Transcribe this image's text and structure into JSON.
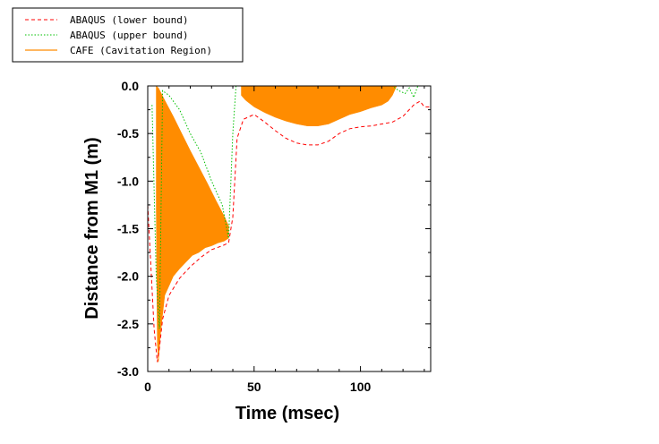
{
  "chart_data": {
    "type": "line",
    "title": "",
    "xlabel": "Time (msec)",
    "ylabel": "Distance from M1 (m)",
    "xlim": [
      0,
      133
    ],
    "ylim": [
      -3.0,
      0.0
    ],
    "xticks": [
      0,
      50,
      100
    ],
    "xtick_labels": [
      "0",
      "50",
      "100"
    ],
    "yticks": [
      0.0,
      -0.5,
      -1.0,
      -1.5,
      -2.0,
      -2.5,
      -3.0
    ],
    "ytick_labels": [
      "0.0",
      "-0.5",
      "-1.0",
      "-1.5",
      "-2.0",
      "-2.5",
      "-3.0"
    ],
    "grid": false,
    "legend_position": "top-left",
    "series": [
      {
        "name": "ABAQUS (lower bound)",
        "style": "dashed",
        "color": "#ff0000",
        "x": [
          0,
          3,
          4.5,
          5.5,
          7,
          10,
          15,
          20,
          25,
          30,
          35,
          38,
          40,
          42,
          45,
          50,
          55,
          60,
          65,
          70,
          75,
          80,
          85,
          90,
          95,
          100,
          105,
          110,
          115,
          120,
          125,
          128,
          130,
          133
        ],
        "y": [
          -1.25,
          -2.55,
          -2.9,
          -2.75,
          -2.45,
          -2.2,
          -2.02,
          -1.9,
          -1.8,
          -1.72,
          -1.68,
          -1.65,
          -1.38,
          -0.55,
          -0.35,
          -0.3,
          -0.38,
          -0.47,
          -0.55,
          -0.6,
          -0.62,
          -0.62,
          -0.58,
          -0.5,
          -0.45,
          -0.43,
          -0.42,
          -0.4,
          -0.38,
          -0.32,
          -0.2,
          -0.16,
          -0.22,
          -0.22
        ]
      },
      {
        "name": "ABAQUS (upper bound)",
        "style": "dotted",
        "color": "#00c000",
        "x": [
          2,
          4,
          5.5,
          7,
          10,
          15,
          20,
          25,
          30,
          35,
          38,
          40,
          41.5,
          43,
          100,
          115,
          118,
          121,
          123,
          125,
          127,
          133
        ],
        "y": [
          -0.2,
          -2.0,
          -2.55,
          -0.05,
          -0.1,
          -0.25,
          -0.5,
          -0.7,
          -1.0,
          -1.25,
          -1.6,
          -0.5,
          0.0,
          0.0,
          0.0,
          0.0,
          -0.05,
          -0.08,
          -0.02,
          -0.12,
          0.0,
          0.0
        ]
      },
      {
        "name": "CAFE (Cavitation Region)",
        "style": "filled",
        "color": "#ff8c00",
        "upper_x": [
          4,
          5,
          8,
          12,
          16,
          20,
          24,
          28,
          32,
          36,
          38
        ],
        "upper_y": [
          0.0,
          -0.02,
          -0.15,
          -0.32,
          -0.5,
          -0.68,
          -0.85,
          -1.02,
          -1.2,
          -1.37,
          -1.47
        ],
        "lower_x": [
          4,
          4.5,
          5,
          6,
          7,
          8,
          10,
          12,
          15,
          18,
          21,
          24,
          27,
          30,
          33,
          36,
          38
        ],
        "lower_y": [
          -1.3,
          -2.7,
          -2.9,
          -2.6,
          -2.4,
          -2.2,
          -2.1,
          -2.0,
          -1.92,
          -1.85,
          -1.78,
          -1.75,
          -1.7,
          -1.68,
          -1.65,
          -1.63,
          -1.6
        ],
        "upper2_x": [
          44,
          117
        ],
        "upper2_y": [
          0.0,
          0.0
        ],
        "lower2_x": [
          44,
          46,
          50,
          55,
          60,
          65,
          70,
          75,
          80,
          85,
          90,
          95,
          100,
          105,
          110,
          113,
          115,
          117
        ],
        "lower2_y": [
          -0.1,
          -0.15,
          -0.22,
          -0.28,
          -0.33,
          -0.37,
          -0.4,
          -0.42,
          -0.42,
          -0.4,
          -0.35,
          -0.3,
          -0.27,
          -0.23,
          -0.2,
          -0.16,
          -0.1,
          0.0
        ]
      }
    ]
  }
}
